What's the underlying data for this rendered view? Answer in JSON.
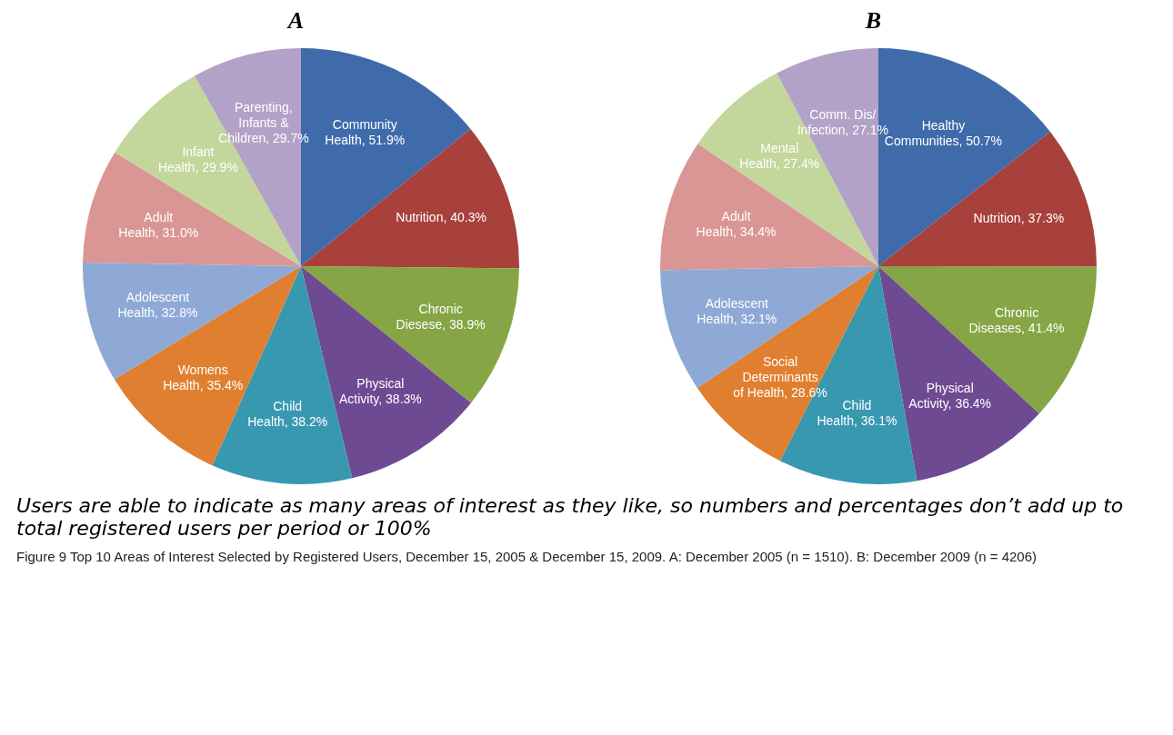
{
  "chart_data": [
    {
      "type": "pie",
      "title": "A",
      "categories": [
        "Community Health",
        "Nutrition",
        "Chronic Diesese",
        "Physical Activity",
        "Child Health",
        "Womens Health",
        "Adolescent Health",
        "Adult Health",
        "Infant Health",
        "Parenting, Infants & Children"
      ],
      "values": [
        51.9,
        40.3,
        38.9,
        38.3,
        38.2,
        35.4,
        32.8,
        31.0,
        29.9,
        29.7
      ],
      "value_labels": [
        "51.9%",
        "40.3%",
        "38.9%",
        "38.3%",
        "38.2%",
        "35.4%",
        "32.8%",
        "31.0%",
        "29.9%",
        "29.7%"
      ],
      "colors": [
        "#3f6baa",
        "#a8403c",
        "#86a544",
        "#6e4a93",
        "#3898b0",
        "#e07f2f",
        "#8ea9d6",
        "#d99694",
        "#c3d69b",
        "#b3a2c7"
      ]
    },
    {
      "type": "pie",
      "title": "B",
      "categories": [
        "Healthy Communities",
        "Nutrition",
        "Chronic Diseases",
        "Physical Activity",
        "Child Health",
        "Social Determinants of Health",
        "Adolescent Health",
        "Adult Health",
        "Mental Health",
        "Comm. Dis/ Infection"
      ],
      "values": [
        50.7,
        37.3,
        41.4,
        36.4,
        36.1,
        28.6,
        32.1,
        34.4,
        27.4,
        27.1
      ],
      "value_labels": [
        "50.7%",
        "37.3%",
        "41.4%",
        "36.4%",
        "36.1%",
        "28.6%",
        "32.1%",
        "34.4%",
        "27.4%",
        "27.1%"
      ],
      "colors": [
        "#3f6baa",
        "#a8403c",
        "#86a544",
        "#6e4a93",
        "#3898b0",
        "#e07f2f",
        "#8ea9d6",
        "#d99694",
        "#c3d69b",
        "#b3a2c7"
      ],
      "annotations": [
        "Users are able to indicate as many areas of interest as they like, so numbers and percentages don’t add up to total registered users per period or 100%",
        "Figure 9 Top 10 Areas of Interest Selected by Registered Users, December 15, 2005 & December 15, 2009. A: December 2005 (n = 1510). B: December 2009 (n = 4206)"
      ]
    }
  ]
}
